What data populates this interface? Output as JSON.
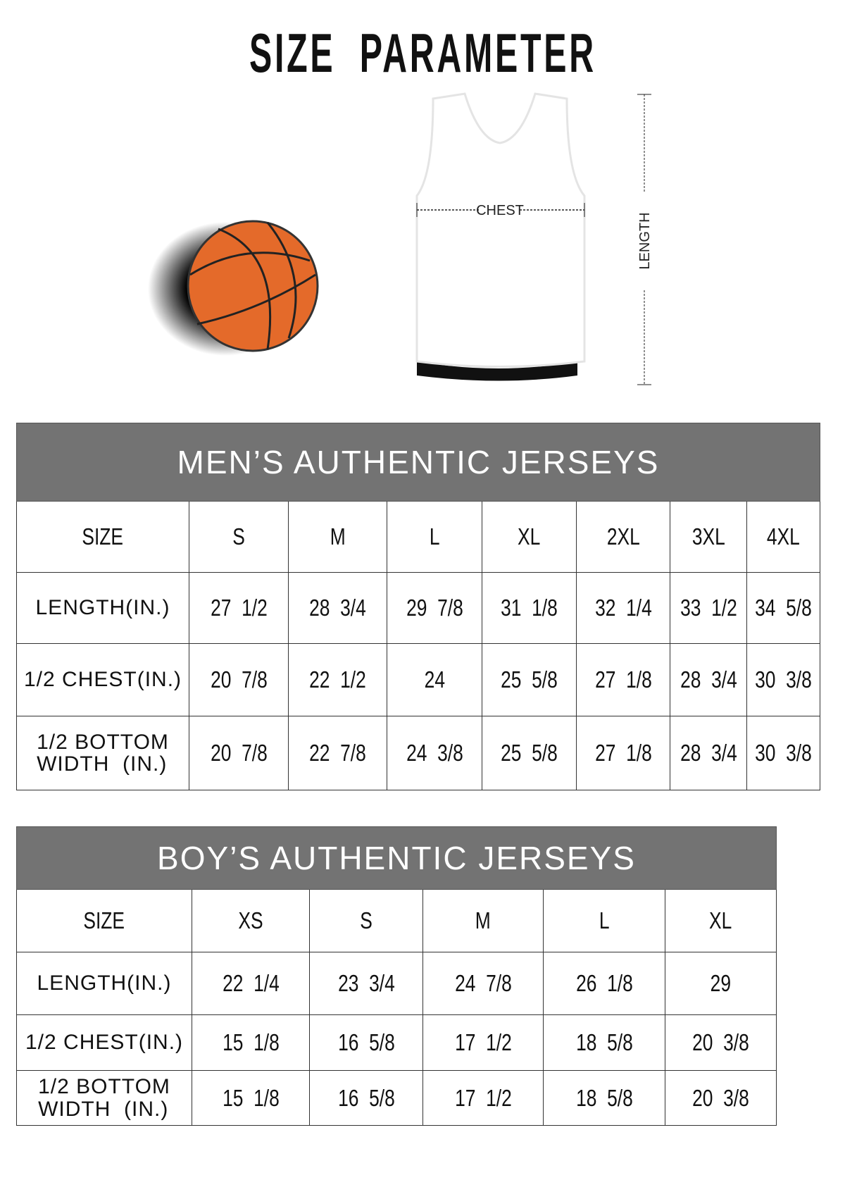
{
  "title": "SIZE  PARAMETER",
  "diagram": {
    "chest_label": "CHEST",
    "length_label": "LENGTH",
    "ball_color": "#e46a2a",
    "header_color": "#737373"
  },
  "men": {
    "title": "MEN’S AUTHENTIC JERSEYS",
    "columns": [
      "SIZE",
      "S",
      "M",
      "L",
      "XL",
      "2XL",
      "3XL",
      "4XL"
    ],
    "rows": [
      {
        "label": "LENGTH(IN.)",
        "values": [
          "27  1/2",
          "28  3/4",
          "29  7/8",
          "31  1/8",
          "32  1/4",
          "33  1/2",
          "34  5/8"
        ]
      },
      {
        "label": "1/2 CHEST(IN.)",
        "values": [
          "20  7/8",
          "22  1/2",
          "24",
          "25  5/8",
          "27  1/8",
          "28  3/4",
          "30  3/8"
        ]
      },
      {
        "label": "1/2 BOTTOM\nWIDTH  (IN.)",
        "values": [
          "20  7/8",
          "22  7/8",
          "24  3/8",
          "25  5/8",
          "27  1/8",
          "28  3/4",
          "30  3/8"
        ]
      }
    ]
  },
  "boy": {
    "title": "BOY’S AUTHENTIC JERSEYS",
    "columns": [
      "SIZE",
      "XS",
      "S",
      "M",
      "L",
      "XL"
    ],
    "rows": [
      {
        "label": "LENGTH(IN.)",
        "values": [
          "22  1/4",
          "23  3/4",
          "24  7/8",
          "26  1/8",
          "29"
        ]
      },
      {
        "label": "1/2 CHEST(IN.)",
        "values": [
          "15  1/8",
          "16  5/8",
          "17  1/2",
          "18  5/8",
          "20  3/8"
        ]
      },
      {
        "label": "1/2 BOTTOM\nWIDTH  (IN.)",
        "values": [
          "15  1/8",
          "16  5/8",
          "17  1/2",
          "18  5/8",
          "20  3/8"
        ]
      }
    ]
  }
}
